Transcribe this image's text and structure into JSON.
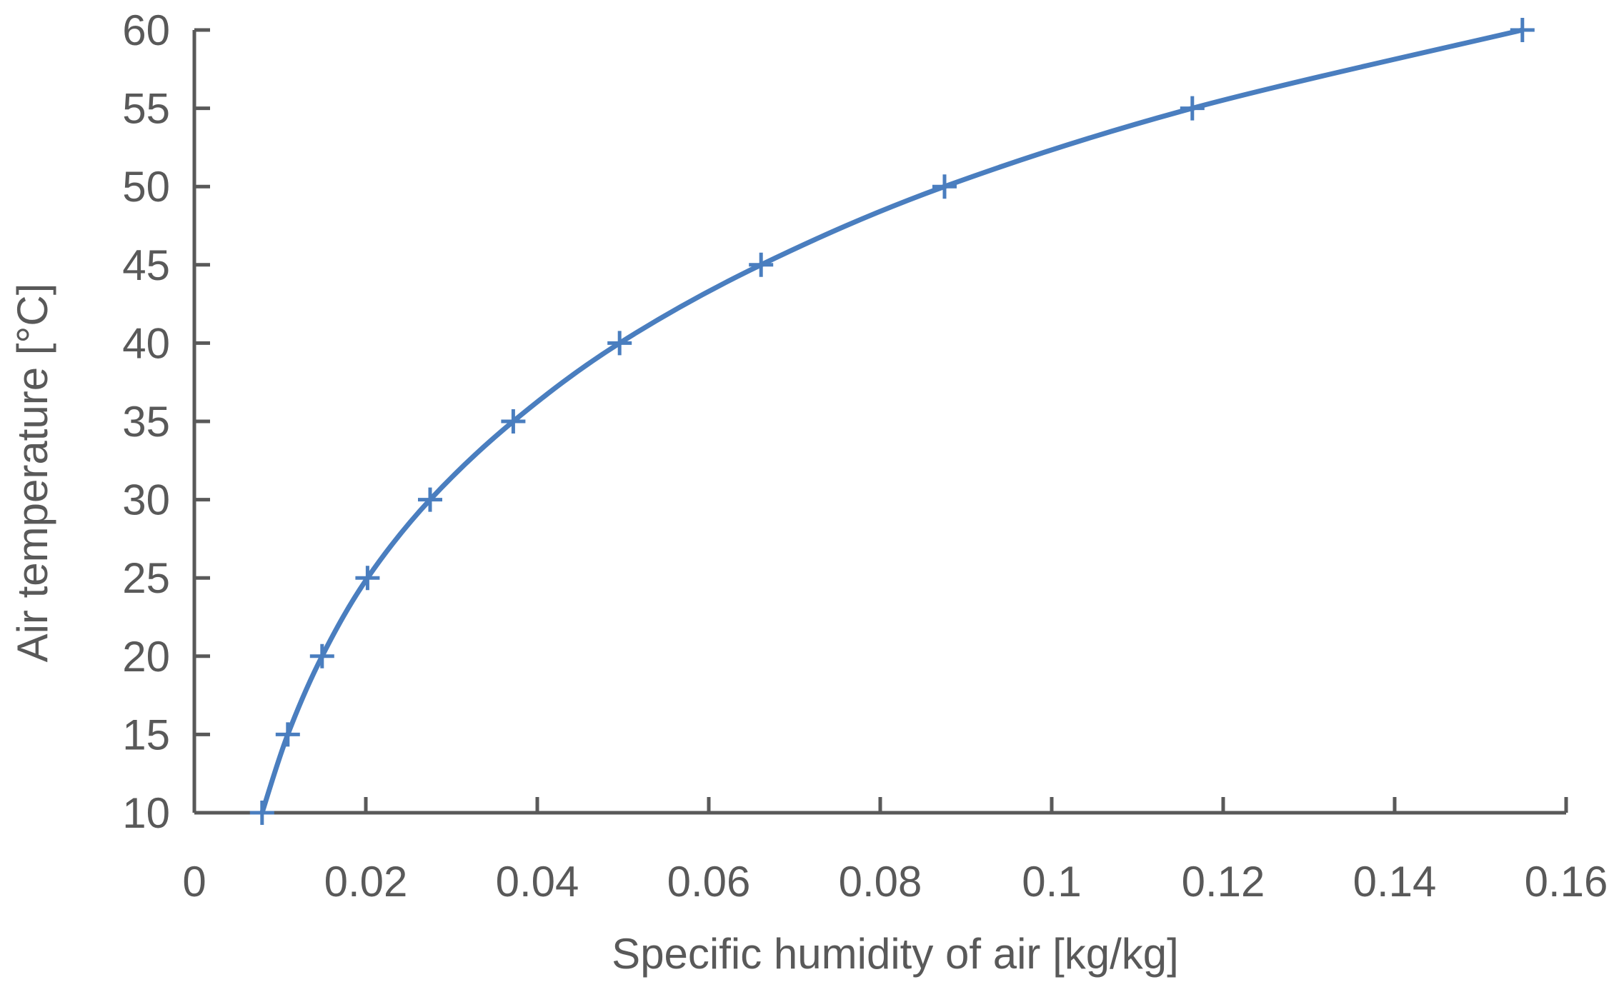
{
  "chart_data": {
    "type": "scatter",
    "xlabel": "Specific humidity of air [kg/kg]",
    "ylabel": "Air temperature [°C]",
    "xlim": [
      0,
      0.16
    ],
    "ylim": [
      10,
      60
    ],
    "x_ticks": [
      0,
      0.02,
      0.04,
      0.06,
      0.08,
      0.1,
      0.12,
      0.14,
      0.16
    ],
    "x_tick_labels": [
      "0",
      "0.02",
      "0.04",
      "0.06",
      "0.08",
      "0.1",
      "0.12",
      "0.14",
      "0.16"
    ],
    "y_ticks": [
      10,
      15,
      20,
      25,
      30,
      35,
      40,
      45,
      50,
      55,
      60
    ],
    "y_tick_labels": [
      "10",
      "15",
      "20",
      "25",
      "30",
      "35",
      "40",
      "45",
      "50",
      "55",
      "60"
    ],
    "grid": false,
    "series": [
      {
        "marker": "plus",
        "line": "smooth",
        "color": "#4a7ebf",
        "x": [
          0.0079,
          0.0109,
          0.0149,
          0.0202,
          0.0275,
          0.0372,
          0.0496,
          0.0661,
          0.0875,
          0.1164,
          0.1549
        ],
        "y": [
          10,
          15,
          20,
          25,
          30,
          35,
          40,
          45,
          50,
          55,
          60
        ]
      }
    ]
  }
}
